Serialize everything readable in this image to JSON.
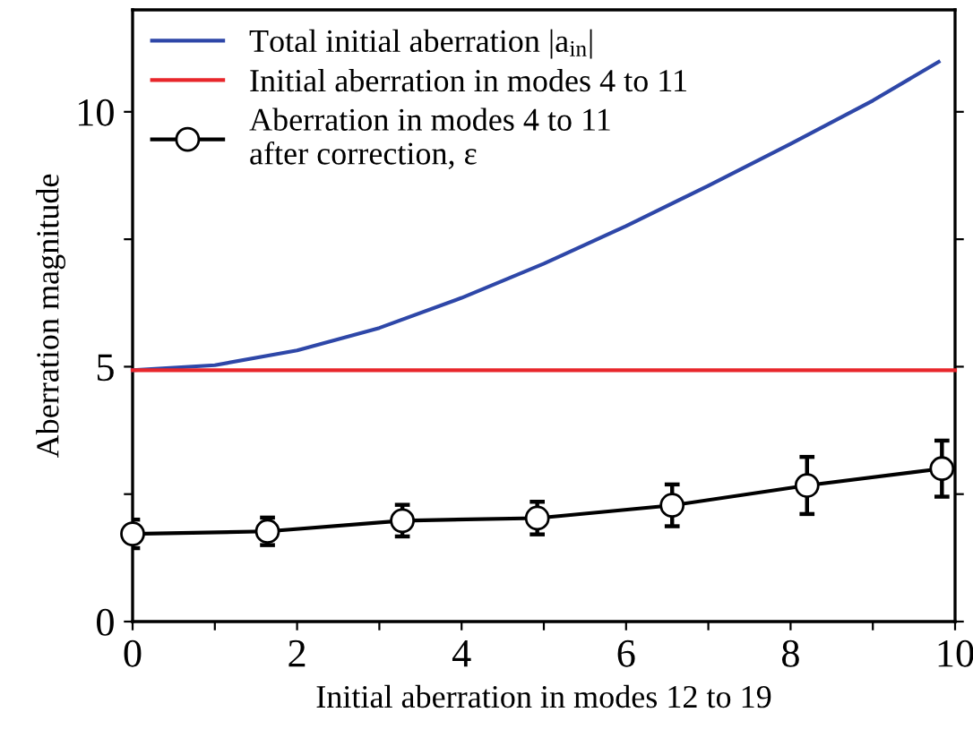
{
  "chart_data": {
    "type": "line",
    "xlabel": "Initial aberration in modes 12 to 19",
    "ylabel": "Aberration magnitude",
    "xlim": [
      0,
      10
    ],
    "ylim": [
      0,
      12
    ],
    "xticks": [
      0,
      {
        "value": 1,
        "label": null
      },
      2,
      {
        "value": 3,
        "label": null
      },
      4,
      {
        "value": 5,
        "label": null
      },
      6,
      {
        "value": 7,
        "label": null
      },
      8,
      {
        "value": 9,
        "label": null
      },
      10
    ],
    "yticks": [
      0,
      {
        "value": 2.5,
        "label": null
      },
      5,
      {
        "value": 7.5,
        "label": null
      },
      10
    ],
    "legend": "top left",
    "grid": false,
    "series": [
      {
        "name": "Total initial aberration |a$_{in}$|",
        "color": "#2e47a8",
        "marker": "none",
        "x": [
          0,
          1,
          2,
          3,
          4,
          5,
          6,
          7,
          8,
          9,
          9.8
        ],
        "values": [
          4.93,
          5.03,
          5.32,
          5.76,
          6.35,
          7.02,
          7.76,
          8.55,
          9.37,
          10.22,
          10.98
        ]
      },
      {
        "name": "Initial aberration in modes 4 to 11",
        "color": "#e8262b",
        "marker": "none",
        "x": [
          0,
          10
        ],
        "values": [
          4.93,
          4.93
        ]
      },
      {
        "name": "Aberration in modes 4 to 11\nafter correction, ε",
        "color": "#000000",
        "marker": "circle",
        "x": [
          0,
          1.64,
          3.28,
          4.92,
          6.56,
          8.2,
          9.84
        ],
        "values": [
          1.72,
          1.77,
          1.98,
          2.03,
          2.28,
          2.67,
          3.0
        ],
        "errors": [
          0.28,
          0.27,
          0.31,
          0.32,
          0.41,
          0.56,
          0.55
        ]
      }
    ]
  }
}
